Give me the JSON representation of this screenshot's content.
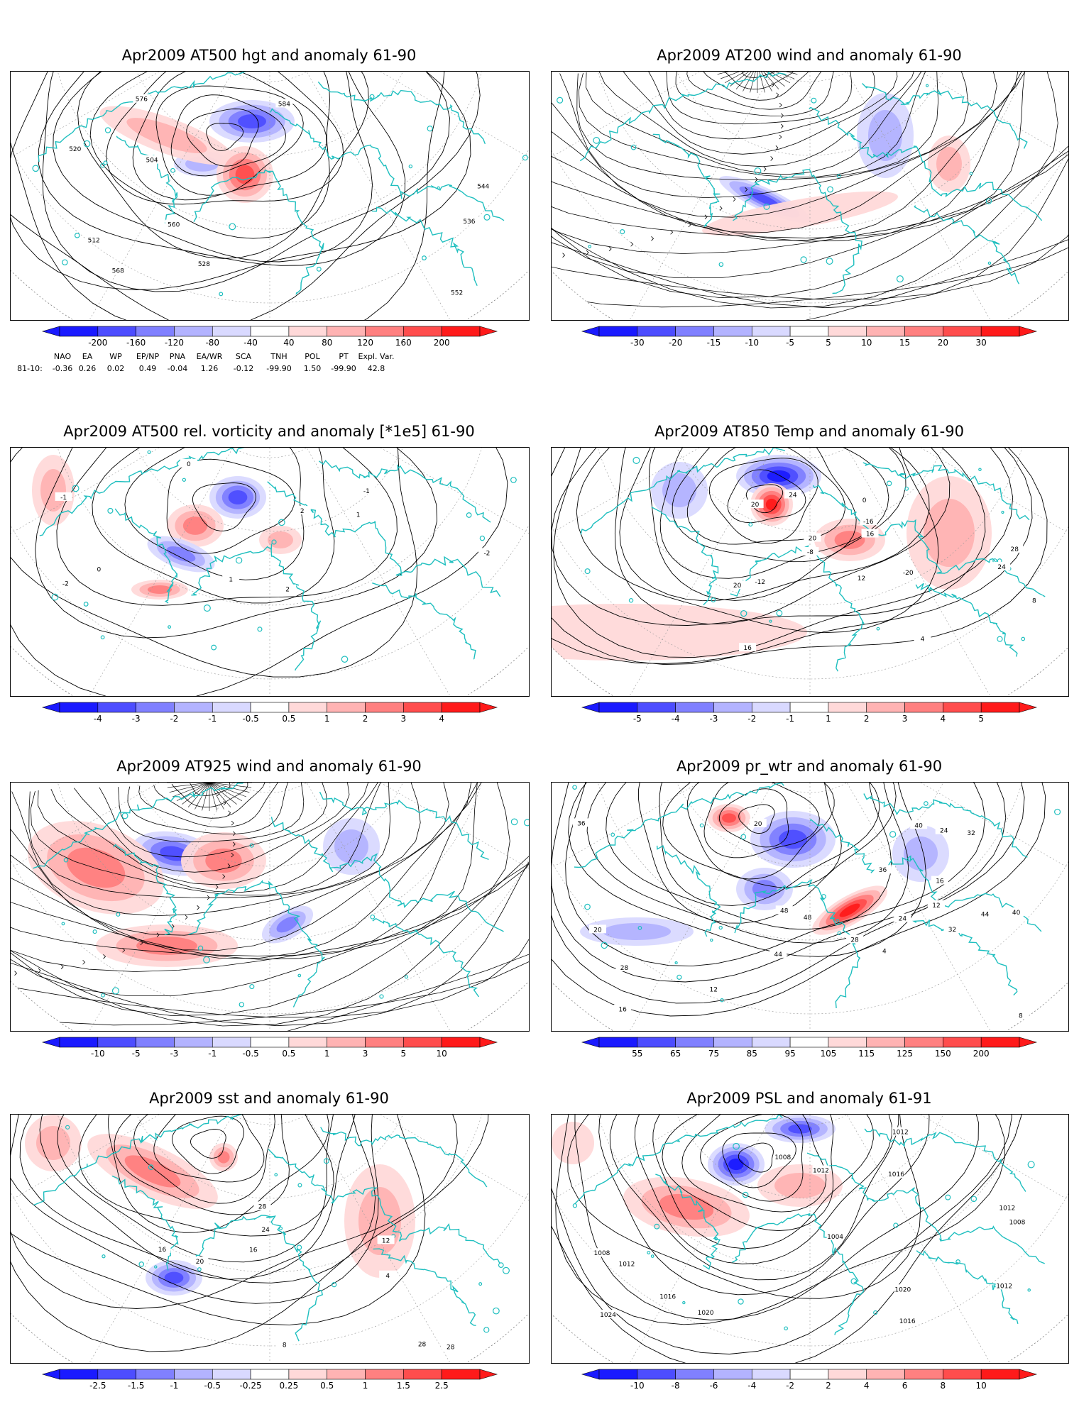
{
  "panels": [
    {
      "id": "p1",
      "title": "Apr2009 AT500 hgt and anomaly 61-90",
      "colorbar": [
        "-200",
        "-160",
        "-120",
        "-80",
        "-40",
        "40",
        "80",
        "120",
        "160",
        "200"
      ],
      "contour_labels": [
        "504",
        "512",
        "520",
        "528",
        "536",
        "544",
        "552",
        "560",
        "568",
        "576",
        "584"
      ],
      "teleconnections": {
        "headers": [
          "NAO",
          "EA",
          "WP",
          "EP/NP",
          "PNA",
          "EA/WR",
          "SCA",
          "TNH",
          "POL",
          "PT",
          "Expl. Var."
        ],
        "row_label": "81-10:",
        "values": [
          "-0.36",
          "0.26",
          "0.02",
          "0.49",
          "-0.04",
          "1.26",
          "-0.12",
          "-99.90",
          "1.50",
          "-99.90",
          "42.8"
        ]
      }
    },
    {
      "id": "p2",
      "title": "Apr2009 AT200 wind and anomaly 61-90",
      "colorbar": [
        "-30",
        "-20",
        "-15",
        "-10",
        "-5",
        "5",
        "10",
        "15",
        "20",
        "30"
      ],
      "contour_labels": []
    },
    {
      "id": "p3",
      "title": "Apr2009 AT500 rel. vorticity and anomaly [*1e5] 61-90",
      "colorbar": [
        "-4",
        "-3",
        "-2",
        "-1",
        "-0.5",
        "0.5",
        "1",
        "2",
        "3",
        "4"
      ],
      "contour_labels": [
        "0",
        "-1",
        "-2",
        "1",
        "2",
        "0",
        "-1",
        "1",
        "-2",
        "2"
      ]
    },
    {
      "id": "p4",
      "title": "Apr2009 AT850 Temp and anomaly 61-90",
      "colorbar": [
        "-5",
        "-4",
        "-3",
        "-2",
        "-1",
        "1",
        "2",
        "3",
        "4",
        "5"
      ],
      "contour_labels": [
        "16",
        "20",
        "24",
        "28",
        "20",
        "-20",
        "-16",
        "-12",
        "-8",
        "4",
        "8",
        "12",
        "16",
        "24",
        "20",
        "0"
      ]
    },
    {
      "id": "p5",
      "title": "Apr2009 AT925 wind and anomaly 61-90",
      "colorbar": [
        "-10",
        "-5",
        "-3",
        "-1",
        "-0.5",
        "0.5",
        "1",
        "3",
        "5",
        "10"
      ],
      "contour_labels": []
    },
    {
      "id": "p6",
      "title": "Apr2009 pr_wtr and anomaly 61-90",
      "colorbar": [
        "55",
        "65",
        "75",
        "85",
        "95",
        "105",
        "115",
        "125",
        "150",
        "200"
      ],
      "contour_labels": [
        "48",
        "28",
        "32",
        "36",
        "40",
        "44",
        "12",
        "24",
        "20",
        "16",
        "8",
        "4",
        "12",
        "16",
        "20",
        "24",
        "28",
        "32",
        "36",
        "40",
        "44",
        "48"
      ]
    },
    {
      "id": "p7",
      "title": "Apr2009 sst and anomaly 61-90",
      "colorbar": [
        "-2.5",
        "-1.5",
        "-1",
        "-0.5",
        "-0.25",
        "0.25",
        "0.5",
        "1",
        "1.5",
        "2.5"
      ],
      "contour_labels": [
        "28",
        "28",
        "4",
        "8",
        "12",
        "16",
        "20",
        "24",
        "28",
        "16"
      ]
    },
    {
      "id": "p8",
      "title": "Apr2009 PSL and anomaly 61-91",
      "colorbar": [
        "-10",
        "-8",
        "-6",
        "-4",
        "-2",
        "2",
        "4",
        "6",
        "8",
        "10"
      ],
      "contour_labels": [
        "1012",
        "1016",
        "1020",
        "1024",
        "1004",
        "1008",
        "1012",
        "1016",
        "1020",
        "1008",
        "1012",
        "1016",
        "1008",
        "1012",
        "1012"
      ]
    }
  ],
  "colors": {
    "coast": "#1fbfbf",
    "contour": "#000000",
    "anom_neg": [
      "#1a1aff",
      "#4d4dff",
      "#8080ff",
      "#b3b3ff",
      "#d9d9ff"
    ],
    "anom_pos": [
      "#ffd9d9",
      "#ffb3b3",
      "#ff8080",
      "#ff4d4d",
      "#ff1a1a"
    ],
    "grid": "#999999"
  }
}
